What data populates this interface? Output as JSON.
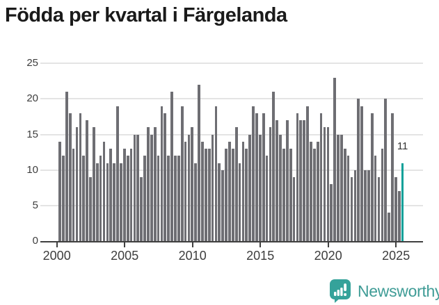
{
  "title": "Födda per kvartal i Färgelanda",
  "chart_data": {
    "type": "bar",
    "title": "Födda per kvartal i Färgelanda",
    "categories": [
      "2000 Q1",
      "2000 Q2",
      "2000 Q3",
      "2000 Q4",
      "2001 Q1",
      "2001 Q2",
      "2001 Q3",
      "2001 Q4",
      "2002 Q1",
      "2002 Q2",
      "2002 Q3",
      "2002 Q4",
      "2003 Q1",
      "2003 Q2",
      "2003 Q3",
      "2003 Q4",
      "2004 Q1",
      "2004 Q2",
      "2004 Q3",
      "2004 Q4",
      "2005 Q1",
      "2005 Q2",
      "2005 Q3",
      "2005 Q4",
      "2006 Q1",
      "2006 Q2",
      "2006 Q3",
      "2006 Q4",
      "2007 Q1",
      "2007 Q2",
      "2007 Q3",
      "2007 Q4",
      "2008 Q1",
      "2008 Q2",
      "2008 Q3",
      "2008 Q4",
      "2009 Q1",
      "2009 Q2",
      "2009 Q3",
      "2009 Q4",
      "2010 Q1",
      "2010 Q2",
      "2010 Q3",
      "2010 Q4",
      "2011 Q1",
      "2011 Q2",
      "2011 Q3",
      "2011 Q4",
      "2012 Q1",
      "2012 Q2",
      "2012 Q3",
      "2012 Q4",
      "2013 Q1",
      "2013 Q2",
      "2013 Q3",
      "2013 Q4",
      "2014 Q1",
      "2014 Q2",
      "2014 Q3",
      "2014 Q4",
      "2015 Q1",
      "2015 Q2",
      "2015 Q3",
      "2015 Q4",
      "2016 Q1",
      "2016 Q2",
      "2016 Q3",
      "2016 Q4",
      "2017 Q1",
      "2017 Q2",
      "2017 Q3",
      "2017 Q4",
      "2018 Q1",
      "2018 Q2",
      "2018 Q3",
      "2018 Q4",
      "2019 Q1",
      "2019 Q2",
      "2019 Q3",
      "2019 Q4",
      "2020 Q1",
      "2020 Q2",
      "2020 Q3",
      "2020 Q4",
      "2021 Q1",
      "2021 Q2",
      "2021 Q3",
      "2021 Q4",
      "2022 Q1",
      "2022 Q2",
      "2022 Q3",
      "2022 Q4",
      "2023 Q1",
      "2023 Q2",
      "2023 Q3",
      "2023 Q4",
      "2024 Q1",
      "2024 Q2",
      "2024 Q3",
      "2024 Q4",
      "2025 Q1",
      "2025 Q2"
    ],
    "values": [
      14,
      12,
      21,
      18,
      13,
      16,
      18,
      12,
      17,
      9,
      16,
      11,
      12,
      14,
      11,
      13,
      11,
      19,
      11,
      13,
      12,
      13,
      15,
      15,
      9,
      12,
      16,
      15,
      16,
      12,
      19,
      18,
      12,
      21,
      12,
      12,
      19,
      14,
      15,
      16,
      11,
      22,
      14,
      13,
      13,
      15,
      19,
      11,
      10,
      13,
      14,
      13,
      16,
      11,
      14,
      13,
      15,
      19,
      18,
      15,
      18,
      12,
      16,
      21,
      17,
      15,
      13,
      17,
      13,
      9,
      18,
      17,
      17,
      19,
      14,
      13,
      14,
      18,
      16,
      16,
      8,
      23,
      15,
      15,
      13,
      12,
      9,
      10,
      20,
      19,
      10,
      10,
      18,
      12,
      9,
      13,
      20,
      4,
      18,
      9,
      7,
      11
    ],
    "highlight_index": 101,
    "highlight_label": "11",
    "bar_color": "#6e6e73",
    "highlight_color": "#0ba099",
    "grid_color": "#e4e4e4",
    "axis_color": "#3f3f3f",
    "ylim": [
      0,
      25
    ],
    "yticks": [
      0,
      5,
      10,
      15,
      20,
      25
    ],
    "xticks": [
      "2000",
      "2005",
      "2010",
      "2015",
      "2020",
      "2025"
    ],
    "grid": "horizontal",
    "legend": "none"
  },
  "branding": {
    "logo_text": "Newsworthy",
    "logo_color": "#3f9c96",
    "icon_color": "#35a29a"
  }
}
